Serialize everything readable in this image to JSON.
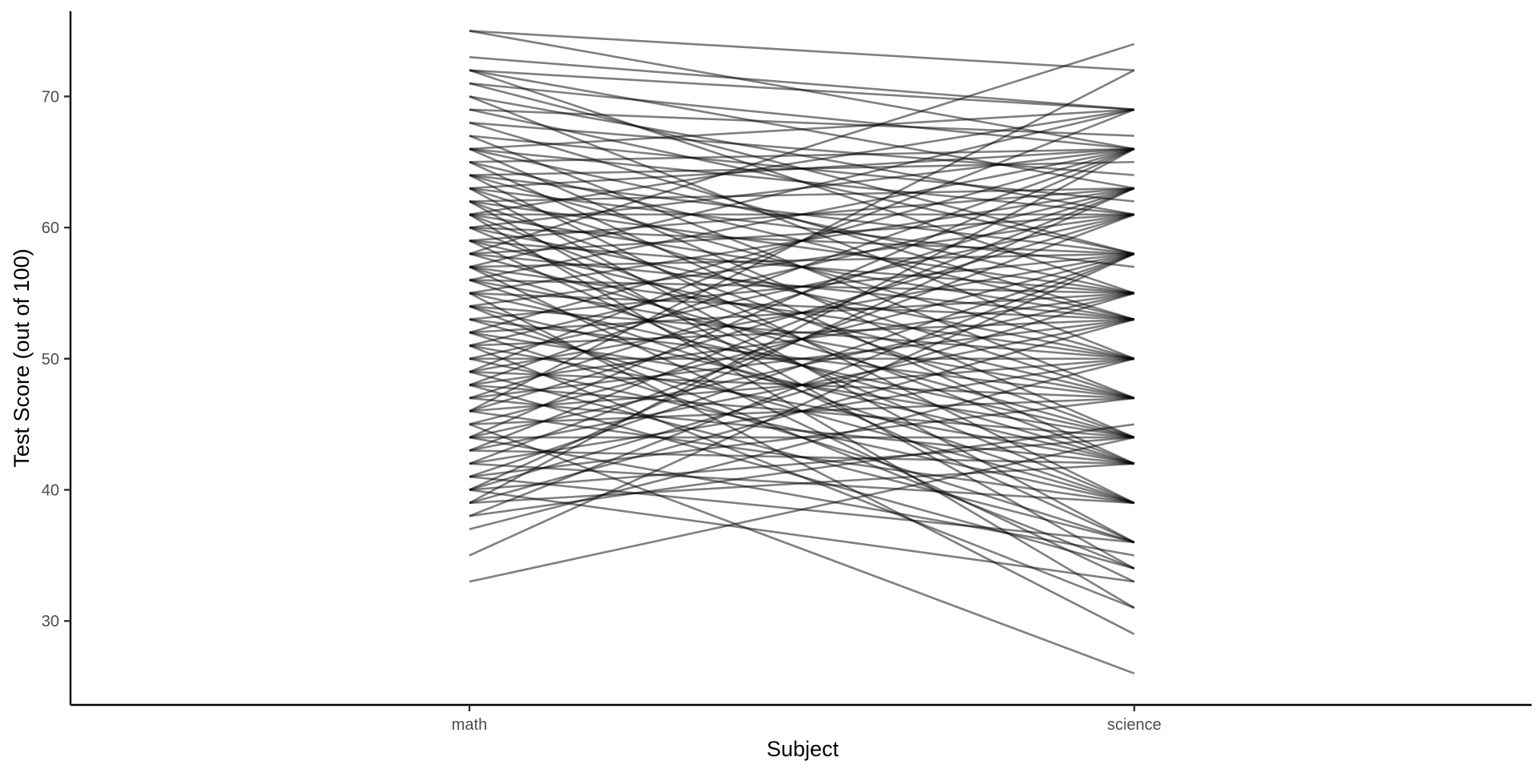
{
  "chart_data": {
    "type": "line",
    "xlabel": "Subject",
    "ylabel": "Test Score (out of 100)",
    "categories": [
      "math",
      "science"
    ],
    "ylim": [
      23.6,
      76.5
    ],
    "y_ticks": [
      30,
      40,
      50,
      60,
      70
    ],
    "grid": false,
    "legend": "none",
    "line_color": "#000000",
    "line_opacity": 0.5,
    "pairs": [
      [
        75,
        72
      ],
      [
        75,
        66
      ],
      [
        73,
        69
      ],
      [
        72,
        69
      ],
      [
        72,
        63
      ],
      [
        72,
        55
      ],
      [
        71,
        66
      ],
      [
        71,
        58
      ],
      [
        70,
        61
      ],
      [
        70,
        50
      ],
      [
        69,
        67
      ],
      [
        69,
        58
      ],
      [
        68,
        64
      ],
      [
        68,
        53
      ],
      [
        67,
        62
      ],
      [
        67,
        47
      ],
      [
        66,
        69
      ],
      [
        66,
        61
      ],
      [
        66,
        55
      ],
      [
        66,
        44
      ],
      [
        65,
        66
      ],
      [
        65,
        53
      ],
      [
        65,
        42
      ],
      [
        64,
        65
      ],
      [
        64,
        58
      ],
      [
        64,
        50
      ],
      [
        64,
        39
      ],
      [
        63,
        66
      ],
      [
        63,
        57
      ],
      [
        63,
        47
      ],
      [
        63,
        36
      ],
      [
        62,
        63
      ],
      [
        62,
        55
      ],
      [
        62,
        44
      ],
      [
        62,
        34
      ],
      [
        61,
        69
      ],
      [
        61,
        61
      ],
      [
        61,
        53
      ],
      [
        61,
        42
      ],
      [
        61,
        31
      ],
      [
        60,
        66
      ],
      [
        60,
        58
      ],
      [
        60,
        50
      ],
      [
        60,
        39
      ],
      [
        59,
        63
      ],
      [
        59,
        55
      ],
      [
        59,
        47
      ],
      [
        59,
        36
      ],
      [
        58,
        74
      ],
      [
        58,
        61
      ],
      [
        58,
        53
      ],
      [
        58,
        44
      ],
      [
        57,
        69
      ],
      [
        57,
        58
      ],
      [
        57,
        50
      ],
      [
        57,
        42
      ],
      [
        57,
        33
      ],
      [
        56,
        66
      ],
      [
        56,
        55
      ],
      [
        56,
        47
      ],
      [
        56,
        39
      ],
      [
        55,
        63
      ],
      [
        55,
        53
      ],
      [
        55,
        44
      ],
      [
        55,
        29
      ],
      [
        54,
        61
      ],
      [
        54,
        50
      ],
      [
        54,
        42
      ],
      [
        54,
        34
      ],
      [
        53,
        58
      ],
      [
        53,
        47
      ],
      [
        53,
        39
      ],
      [
        52,
        66
      ],
      [
        52,
        55
      ],
      [
        52,
        44
      ],
      [
        52,
        36
      ],
      [
        51,
        63
      ],
      [
        51,
        53
      ],
      [
        51,
        42
      ],
      [
        51,
        31
      ],
      [
        50,
        61
      ],
      [
        50,
        50
      ],
      [
        50,
        39
      ],
      [
        49,
        69
      ],
      [
        49,
        58
      ],
      [
        49,
        47
      ],
      [
        49,
        36
      ],
      [
        48,
        66
      ],
      [
        48,
        55
      ],
      [
        48,
        44
      ],
      [
        48,
        34
      ],
      [
        47,
        63
      ],
      [
        47,
        53
      ],
      [
        47,
        42
      ],
      [
        46,
        72
      ],
      [
        46,
        61
      ],
      [
        46,
        50
      ],
      [
        46,
        39
      ],
      [
        45,
        58
      ],
      [
        45,
        47
      ],
      [
        45,
        26
      ],
      [
        44,
        66
      ],
      [
        44,
        55
      ],
      [
        44,
        44
      ],
      [
        44,
        35
      ],
      [
        43,
        63
      ],
      [
        43,
        53
      ],
      [
        43,
        42
      ],
      [
        42,
        61
      ],
      [
        42,
        50
      ],
      [
        42,
        39
      ],
      [
        41,
        58
      ],
      [
        41,
        47
      ],
      [
        41,
        36
      ],
      [
        40,
        63
      ],
      [
        40,
        55
      ],
      [
        40,
        44
      ],
      [
        40,
        33
      ],
      [
        39,
        66
      ],
      [
        39,
        53
      ],
      [
        39,
        42
      ],
      [
        38,
        58
      ],
      [
        38,
        45
      ],
      [
        37,
        50
      ],
      [
        35,
        58
      ],
      [
        33,
        44
      ]
    ]
  }
}
